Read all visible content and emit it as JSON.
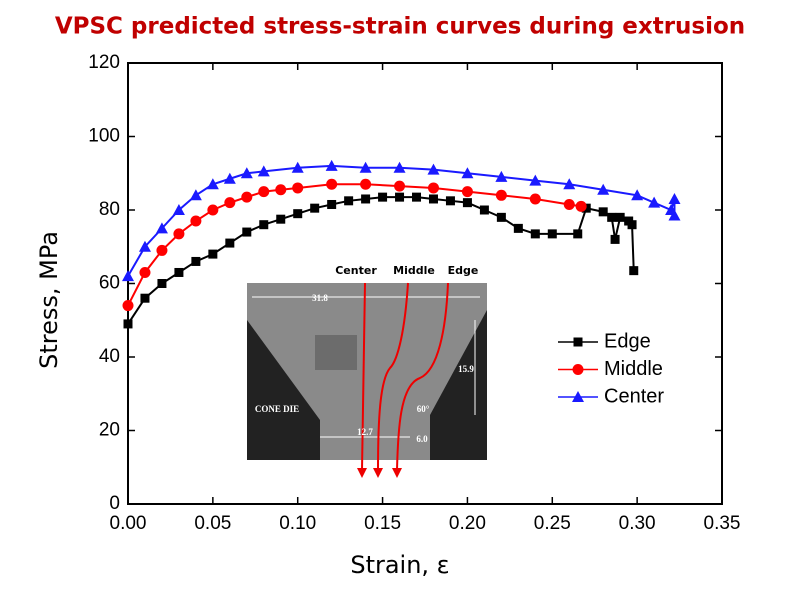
{
  "chart_data": {
    "type": "line",
    "title": "VPSC predicted stress-strain curves during extrusion",
    "x_label": "Strain, ε",
    "y_label": "Stress, MPa",
    "xlim": [
      0,
      0.35
    ],
    "ylim": [
      0,
      120
    ],
    "xticks": [
      {
        "value": 0,
        "label": "0.00"
      },
      0.05,
      {
        "value": 0.1,
        "label": "0.10"
      },
      0.15,
      {
        "value": 0.2,
        "label": "0.20"
      },
      0.25,
      {
        "value": 0.3,
        "label": "0.30"
      },
      0.35
    ],
    "yticks": [
      0,
      20,
      40,
      60,
      80,
      100,
      120
    ],
    "grid": false,
    "legend": "right",
    "series": [
      {
        "name": "Edge",
        "color": "#000000",
        "marker": "square",
        "x": [
          0,
          0.01,
          0.02,
          0.03,
          0.04,
          0.05,
          0.06,
          0.07,
          0.08,
          0.09,
          0.1,
          0.11,
          0.12,
          0.13,
          0.14,
          0.15,
          0.16,
          0.17,
          0.18,
          0.19,
          0.2,
          0.21,
          0.22,
          0.23,
          0.24,
          0.25,
          0.265,
          0.27,
          0.28,
          0.285,
          0.287,
          0.29,
          0.295,
          0.297,
          0.298
        ],
        "values": [
          49,
          56,
          60,
          63,
          66,
          68,
          71,
          74,
          76,
          77.5,
          79,
          80.5,
          81.5,
          82.5,
          83,
          83.5,
          83.5,
          83.5,
          83,
          82.5,
          82,
          80,
          78,
          75,
          73.5,
          73.5,
          73.5,
          80.5,
          79.5,
          78,
          72,
          78,
          77,
          76,
          63.5
        ]
      },
      {
        "name": "Middle",
        "color": "#ff0000",
        "marker": "circle",
        "x": [
          0,
          0.01,
          0.02,
          0.03,
          0.04,
          0.05,
          0.06,
          0.07,
          0.08,
          0.09,
          0.1,
          0.12,
          0.14,
          0.16,
          0.18,
          0.2,
          0.22,
          0.24,
          0.26,
          0.267
        ],
        "values": [
          54,
          63,
          69,
          73.5,
          77,
          80,
          82,
          83.5,
          85,
          85.5,
          86,
          87,
          87,
          86.5,
          86,
          85,
          84,
          83,
          81.5,
          81
        ]
      },
      {
        "name": "Center",
        "color": "#1a1aff",
        "marker": "triangle",
        "x": [
          0,
          0.01,
          0.02,
          0.03,
          0.04,
          0.05,
          0.06,
          0.07,
          0.08,
          0.1,
          0.12,
          0.14,
          0.16,
          0.18,
          0.2,
          0.22,
          0.24,
          0.26,
          0.28,
          0.3,
          0.31,
          0.32,
          0.322,
          0.322
        ],
        "values": [
          62,
          70,
          75,
          80,
          84,
          87,
          88.5,
          90,
          90.5,
          91.5,
          92,
          91.5,
          91.5,
          91,
          90,
          89,
          88,
          87,
          85.5,
          84,
          82,
          80,
          83,
          78.5
        ]
      }
    ],
    "inset": {
      "curve_labels": [
        "Center",
        "Middle",
        "Edge"
      ],
      "labels": [
        "31.8",
        "15.9",
        "CONE DIE",
        "60°",
        "12.7",
        "6.0"
      ]
    }
  }
}
